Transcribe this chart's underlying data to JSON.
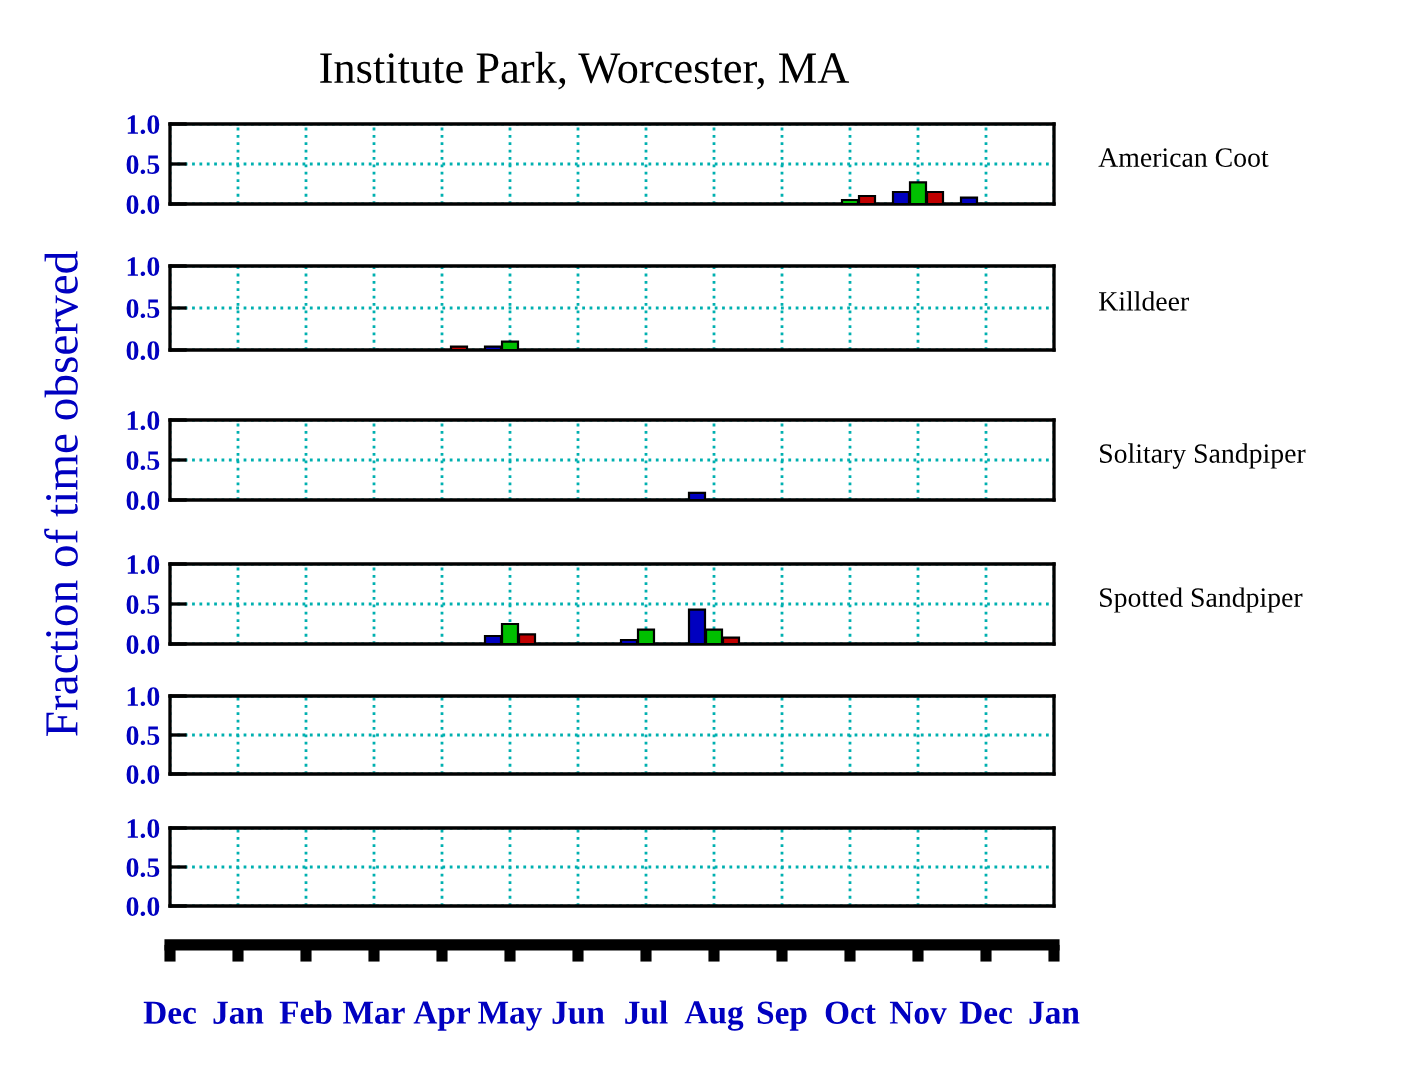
{
  "chart_data": [
    {
      "type": "bar",
      "title": "Institute Park, Worcester, MA",
      "ylabel": "Fraction of time observed",
      "annotations": [
        "American Coot"
      ],
      "categories": [
        null,
        null,
        null,
        null,
        null,
        null,
        null,
        null,
        null,
        null,
        null,
        null,
        null,
        null,
        null,
        null,
        null,
        null,
        null,
        null,
        null,
        null,
        null,
        null,
        null,
        null,
        null,
        null,
        null,
        null,
        null,
        null,
        null,
        null,
        null,
        null,
        null,
        null,
        null,
        null,
        null,
        null,
        null,
        null,
        null,
        null,
        null,
        null,
        null,
        null,
        null,
        null,
        null
      ],
      "series": [
        {
          "color": "#0000c0",
          "values": [
            null,
            null,
            null,
            null,
            null,
            null,
            null,
            null,
            null,
            null,
            null,
            null,
            null,
            null,
            null,
            null,
            null,
            null,
            null,
            null,
            null,
            null,
            null,
            null,
            null,
            null,
            null,
            null,
            null,
            null,
            null,
            null,
            null,
            null,
            null,
            null,
            null,
            null,
            null,
            null,
            null,
            null,
            null,
            0.15,
            null,
            null,
            null,
            0.08,
            null,
            null,
            null,
            null,
            null
          ]
        },
        {
          "color": "#00c000",
          "values": [
            null,
            null,
            null,
            null,
            null,
            null,
            null,
            null,
            null,
            null,
            null,
            null,
            null,
            null,
            null,
            null,
            null,
            null,
            null,
            null,
            null,
            null,
            null,
            null,
            null,
            null,
            null,
            null,
            null,
            null,
            null,
            null,
            null,
            null,
            null,
            null,
            null,
            null,
            null,
            null,
            0.05,
            null,
            null,
            null,
            0.27,
            null,
            null,
            null,
            null,
            null,
            null,
            null,
            null
          ]
        },
        {
          "color": "#c00000",
          "values": [
            null,
            null,
            null,
            null,
            null,
            null,
            null,
            null,
            null,
            null,
            null,
            null,
            null,
            null,
            null,
            null,
            null,
            null,
            null,
            null,
            null,
            null,
            null,
            null,
            null,
            null,
            null,
            null,
            null,
            null,
            null,
            null,
            null,
            null,
            null,
            null,
            null,
            null,
            null,
            null,
            null,
            0.1,
            null,
            null,
            null,
            0.15,
            null,
            null,
            null,
            null,
            null,
            null,
            null
          ]
        }
      ],
      "ylim": [
        0,
        1
      ],
      "yticks": [
        {
          "value": 0,
          "label": "0.0"
        },
        {
          "value": 0.5,
          "label": "0.5"
        },
        {
          "value": 1,
          "label": "1.0"
        }
      ],
      "grid": true,
      "tick_labels": "y"
    },
    {
      "type": "bar",
      "annotations": [
        "Killdeer"
      ],
      "categories": [
        null,
        null,
        null,
        null,
        null,
        null,
        null,
        null,
        null,
        null,
        null,
        null,
        null,
        null,
        null,
        null,
        null,
        null,
        null,
        null,
        null,
        null,
        null,
        null,
        null,
        null,
        null,
        null,
        null,
        null,
        null,
        null,
        null,
        null,
        null,
        null,
        null,
        null,
        null,
        null,
        null,
        null,
        null,
        null,
        null,
        null,
        null,
        null,
        null,
        null,
        null,
        null,
        null
      ],
      "series": [
        {
          "color": "#0000c0",
          "values": [
            null,
            null,
            null,
            null,
            null,
            null,
            null,
            null,
            null,
            null,
            null,
            null,
            null,
            null,
            null,
            null,
            null,
            null,
            null,
            0.04,
            null,
            null,
            null,
            null,
            null,
            null,
            null,
            null,
            null,
            null,
            null,
            null,
            null,
            null,
            null,
            null,
            null,
            null,
            null,
            null,
            null,
            null,
            null,
            null,
            null,
            null,
            null,
            null,
            null,
            null,
            null,
            null,
            null
          ]
        },
        {
          "color": "#00c000",
          "values": [
            null,
            null,
            null,
            null,
            null,
            null,
            null,
            null,
            null,
            null,
            null,
            null,
            null,
            null,
            null,
            null,
            null,
            null,
            null,
            null,
            0.1,
            null,
            null,
            null,
            null,
            null,
            null,
            null,
            null,
            null,
            null,
            null,
            null,
            null,
            null,
            null,
            null,
            null,
            null,
            null,
            null,
            null,
            null,
            null,
            null,
            null,
            null,
            null,
            null,
            null,
            null,
            null,
            null
          ]
        },
        {
          "color": "#c00000",
          "values": [
            null,
            null,
            null,
            null,
            null,
            null,
            null,
            null,
            null,
            null,
            null,
            null,
            null,
            null,
            null,
            null,
            null,
            0.04,
            null,
            null,
            null,
            null,
            null,
            null,
            null,
            null,
            null,
            null,
            null,
            null,
            null,
            null,
            null,
            null,
            null,
            null,
            null,
            null,
            null,
            null,
            null,
            null,
            null,
            null,
            null,
            null,
            null,
            null,
            null,
            null,
            null,
            null,
            null
          ]
        }
      ],
      "ylim": [
        0,
        1
      ],
      "yticks": [
        {
          "value": 0,
          "label": "0.0"
        },
        {
          "value": 0.5,
          "label": "0.5"
        },
        {
          "value": 1,
          "label": "1.0"
        }
      ],
      "grid": true,
      "tick_labels": "y"
    },
    {
      "type": "bar",
      "annotations": [
        "Solitary Sandpiper"
      ],
      "categories": [
        null,
        null,
        null,
        null,
        null,
        null,
        null,
        null,
        null,
        null,
        null,
        null,
        null,
        null,
        null,
        null,
        null,
        null,
        null,
        null,
        null,
        null,
        null,
        null,
        null,
        null,
        null,
        null,
        null,
        null,
        null,
        null,
        null,
        null,
        null,
        null,
        null,
        null,
        null,
        null,
        null,
        null,
        null,
        null,
        null,
        null,
        null,
        null,
        null,
        null,
        null,
        null,
        null
      ],
      "series": [
        {
          "color": "#0000c0",
          "values": [
            null,
            null,
            null,
            null,
            null,
            null,
            null,
            null,
            null,
            null,
            null,
            null,
            null,
            null,
            null,
            null,
            null,
            null,
            null,
            null,
            null,
            null,
            null,
            null,
            null,
            null,
            null,
            null,
            null,
            null,
            null,
            0.09,
            null,
            null,
            null,
            null,
            null,
            null,
            null,
            null,
            null,
            null,
            null,
            null,
            null,
            null,
            null,
            null,
            null,
            null,
            null,
            null,
            null
          ]
        }
      ],
      "ylim": [
        0,
        1
      ],
      "yticks": [
        {
          "value": 0,
          "label": "0.0"
        },
        {
          "value": 0.5,
          "label": "0.5"
        },
        {
          "value": 1,
          "label": "1.0"
        }
      ],
      "grid": true,
      "tick_labels": "y"
    },
    {
      "type": "bar",
      "annotations": [
        "Spotted Sandpiper"
      ],
      "categories": [
        null,
        null,
        null,
        null,
        null,
        null,
        null,
        null,
        null,
        null,
        null,
        null,
        null,
        null,
        null,
        null,
        null,
        null,
        null,
        null,
        null,
        null,
        null,
        null,
        null,
        null,
        null,
        null,
        null,
        null,
        null,
        null,
        null,
        null,
        null,
        null,
        null,
        null,
        null,
        null,
        null,
        null,
        null,
        null,
        null,
        null,
        null,
        null,
        null,
        null,
        null,
        null,
        null
      ],
      "series": [
        {
          "color": "#0000c0",
          "values": [
            null,
            null,
            null,
            null,
            null,
            null,
            null,
            null,
            null,
            null,
            null,
            null,
            null,
            null,
            null,
            null,
            null,
            null,
            null,
            0.1,
            null,
            null,
            null,
            null,
            null,
            null,
            null,
            0.05,
            null,
            null,
            null,
            0.43,
            null,
            null,
            null,
            null,
            null,
            null,
            null,
            null,
            null,
            null,
            null,
            null,
            null,
            null,
            null,
            null,
            null,
            null,
            null,
            null,
            null
          ]
        },
        {
          "color": "#00c000",
          "values": [
            null,
            null,
            null,
            null,
            null,
            null,
            null,
            null,
            null,
            null,
            null,
            null,
            null,
            null,
            null,
            null,
            null,
            null,
            null,
            null,
            0.25,
            null,
            null,
            null,
            null,
            null,
            null,
            null,
            0.18,
            null,
            null,
            null,
            0.18,
            null,
            null,
            null,
            null,
            null,
            null,
            null,
            null,
            null,
            null,
            null,
            null,
            null,
            null,
            null,
            null,
            null,
            null,
            null,
            null
          ]
        },
        {
          "color": "#c00000",
          "values": [
            null,
            null,
            null,
            null,
            null,
            null,
            null,
            null,
            null,
            null,
            null,
            null,
            null,
            null,
            null,
            null,
            null,
            null,
            null,
            null,
            null,
            0.12,
            null,
            null,
            null,
            null,
            null,
            null,
            null,
            null,
            null,
            null,
            null,
            0.08,
            null,
            null,
            null,
            null,
            null,
            null,
            null,
            null,
            null,
            null,
            null,
            null,
            null,
            null,
            null,
            null,
            null,
            null,
            null
          ]
        }
      ],
      "ylim": [
        0,
        1
      ],
      "yticks": [
        {
          "value": 0,
          "label": "0.0"
        },
        {
          "value": 0.5,
          "label": "0.5"
        },
        {
          "value": 1,
          "label": "1.0"
        }
      ],
      "grid": true,
      "tick_labels": "y"
    },
    {
      "type": "bar",
      "categories": [
        null,
        null,
        null,
        null,
        null,
        null,
        null,
        null,
        null,
        null,
        null,
        null,
        null,
        null,
        null,
        null,
        null,
        null,
        null,
        null,
        null,
        null,
        null,
        null,
        null,
        null,
        null,
        null,
        null,
        null,
        null,
        null,
        null,
        null,
        null,
        null,
        null,
        null,
        null,
        null,
        null,
        null,
        null,
        null,
        null,
        null,
        null,
        null,
        null,
        null,
        null,
        null,
        null
      ],
      "ylim": [
        0,
        1
      ],
      "yticks": [
        {
          "value": 0,
          "label": "0.0"
        },
        {
          "value": 0.5,
          "label": "0.5"
        },
        {
          "value": 1,
          "label": "1.0"
        }
      ],
      "grid": true,
      "tick_labels": "y"
    },
    {
      "type": "bar",
      "categories": [
        "Dec",
        null,
        null,
        null,
        "Jan",
        null,
        null,
        null,
        "Feb",
        null,
        null,
        null,
        "Mar",
        null,
        null,
        null,
        "Apr",
        null,
        null,
        null,
        "May",
        null,
        null,
        null,
        "Jun",
        null,
        null,
        null,
        "Jul",
        null,
        null,
        null,
        "Aug",
        null,
        null,
        null,
        "Sep",
        null,
        null,
        null,
        "Oct",
        null,
        null,
        null,
        "Nov",
        null,
        null,
        null,
        "Dec",
        null,
        null,
        null,
        "Jan"
      ],
      "ylim": [
        0,
        1
      ],
      "yticks": [
        {
          "value": 0,
          "label": "0.0"
        },
        {
          "value": 0.5,
          "label": "0.5"
        },
        {
          "value": 1,
          "label": "1.0"
        }
      ],
      "grid": true
    }
  ]
}
